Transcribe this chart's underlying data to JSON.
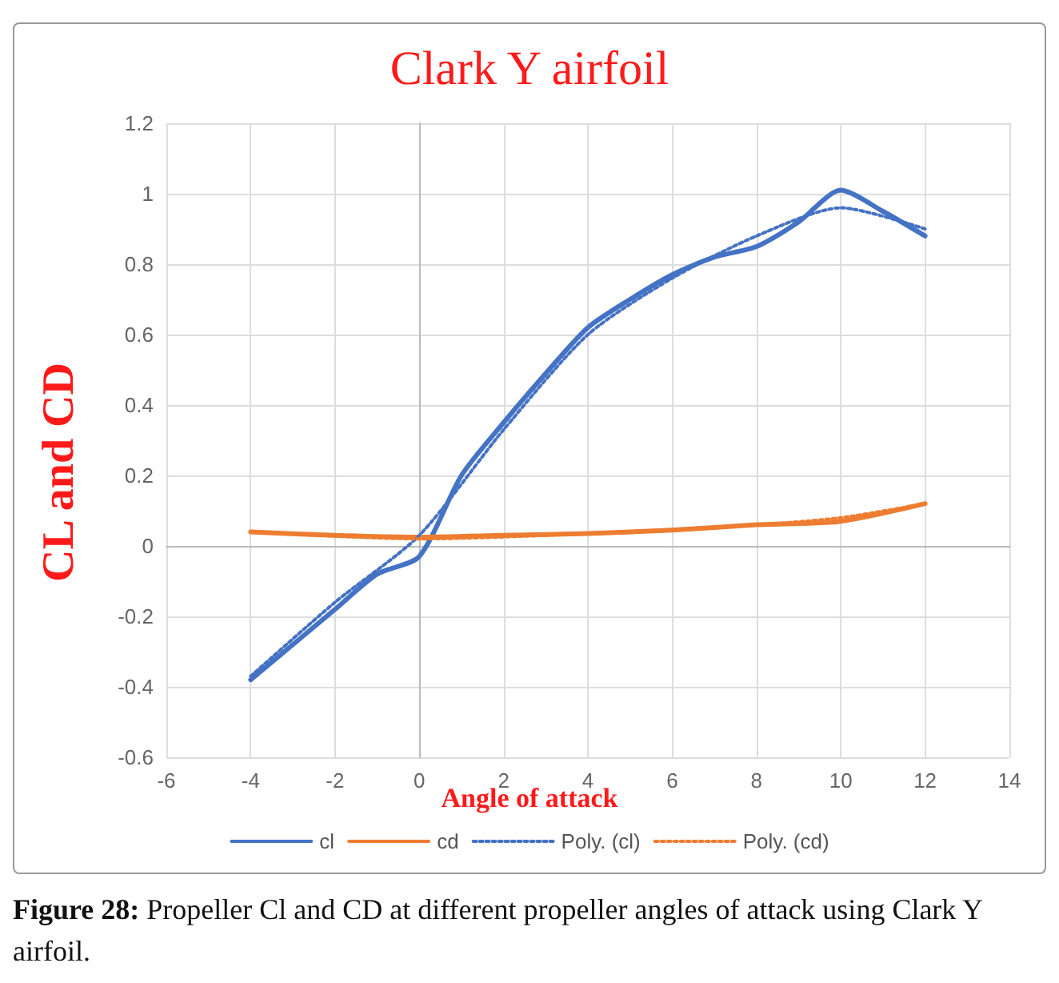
{
  "chart_data": {
    "type": "line",
    "title": "Clark Y airfoil",
    "xlabel": "Angle of attack",
    "ylabel": "CL and CD",
    "xlim": [
      -6,
      14
    ],
    "xticks": [
      -6,
      -4,
      -2,
      0,
      2,
      4,
      6,
      8,
      10,
      12,
      14
    ],
    "ylim": [
      -0.6,
      1.2
    ],
    "yticks": [
      -0.6,
      -0.4,
      -0.2,
      0,
      0.2,
      0.4,
      0.6,
      0.8,
      1,
      1.2
    ],
    "grid": true,
    "legend": "bottom",
    "marker": "none",
    "annotations": [
      "Figure 28: Propeller Cl and CD at different propeller angles of attack using Clark Y airfoil."
    ],
    "series": [
      {
        "name": "cl",
        "color": "#4472c4",
        "line_style": "solid",
        "x": [
          -4,
          -3,
          -2,
          -1,
          0,
          1,
          2,
          3,
          4,
          5,
          6,
          7,
          8,
          9,
          10,
          11,
          12
        ],
        "values": [
          -0.38,
          -0.28,
          -0.18,
          -0.08,
          -0.03,
          0.2,
          0.35,
          0.49,
          0.62,
          0.7,
          0.77,
          0.82,
          0.85,
          0.92,
          1.01,
          0.95,
          0.88
        ]
      },
      {
        "name": "cd",
        "color": "#ed7d31",
        "line_style": "solid",
        "x": [
          -4,
          -2,
          0,
          2,
          4,
          6,
          8,
          10,
          12
        ],
        "values": [
          0.04,
          0.03,
          0.025,
          0.03,
          0.035,
          0.045,
          0.06,
          0.07,
          0.12
        ]
      },
      {
        "name": "Poly. (cl)",
        "color": "#4472c4",
        "line_style": "dotted",
        "x": [
          -4,
          -2,
          0,
          2,
          4,
          6,
          8,
          10,
          12
        ],
        "values": [
          -0.37,
          -0.16,
          0.03,
          0.33,
          0.6,
          0.76,
          0.88,
          0.96,
          0.9
        ]
      },
      {
        "name": "Poly. (cd)",
        "color": "#ed7d31",
        "line_style": "dotted",
        "x": [
          -4,
          0,
          4,
          8,
          10,
          12
        ],
        "values": [
          0.04,
          0.02,
          0.035,
          0.06,
          0.08,
          0.12
        ]
      }
    ]
  }
}
